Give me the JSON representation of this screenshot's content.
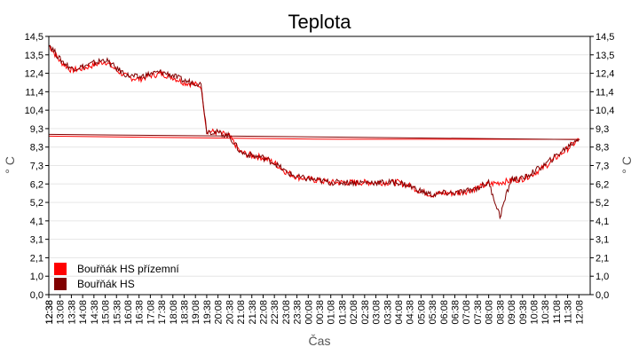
{
  "chart_data": {
    "type": "line",
    "title": "Teplota",
    "xlabel": "Čas",
    "ylabel": "° C",
    "ylim": [
      0,
      14.5
    ],
    "y_ticks": [
      "0,0",
      "1,0",
      "2,1",
      "3,1",
      "4,1",
      "5,2",
      "6,2",
      "7,3",
      "8,3",
      "9,3",
      "10,4",
      "11,4",
      "12,4",
      "13,5",
      "14,5"
    ],
    "x_ticks": [
      "12:38",
      "13:08",
      "13:38",
      "14:08",
      "14:38",
      "15:08",
      "15:38",
      "16:08",
      "16:38",
      "17:08",
      "17:38",
      "18:08",
      "18:38",
      "19:08",
      "19:38",
      "20:08",
      "20:38",
      "21:08",
      "21:38",
      "22:08",
      "22:38",
      "23:08",
      "23:38",
      "00:08",
      "00:38",
      "01:08",
      "01:38",
      "02:08",
      "02:38",
      "03:08",
      "03:38",
      "04:08",
      "04:38",
      "05:08",
      "05:38",
      "06:08",
      "06:38",
      "07:08",
      "07:38",
      "08:08",
      "08:38",
      "09:08",
      "09:38",
      "10:08",
      "10:38",
      "11:08",
      "11:38",
      "12:08",
      "12:38"
    ],
    "grid": true,
    "legend_position": "bottom-left",
    "series": [
      {
        "name": "Bouřňák HS přízemní",
        "color": "#ff0000",
        "x": [
          "12:38",
          "13:08",
          "13:38",
          "14:08",
          "14:38",
          "15:08",
          "15:38",
          "16:08",
          "16:38",
          "17:08",
          "17:38",
          "18:08",
          "18:38",
          "19:08",
          "19:23",
          "19:38",
          "20:08",
          "20:38",
          "21:08",
          "21:38",
          "22:08",
          "22:38",
          "23:08",
          "23:38",
          "00:08",
          "00:38",
          "01:08",
          "01:38",
          "02:08",
          "02:38",
          "03:08",
          "03:38",
          "04:08",
          "04:38",
          "05:08",
          "05:38",
          "06:08",
          "06:38",
          "07:08",
          "07:38",
          "08:08",
          "08:38",
          "09:08",
          "09:38",
          "10:08",
          "10:38",
          "11:08",
          "11:38",
          "12:08",
          "12:38"
        ],
        "values": [
          14.0,
          13.1,
          12.6,
          12.7,
          12.9,
          13.1,
          12.6,
          12.2,
          12.1,
          12.3,
          12.4,
          12.2,
          11.9,
          11.8,
          11.7,
          9.2,
          9.1,
          8.9,
          8.0,
          7.8,
          7.7,
          7.4,
          6.9,
          6.6,
          6.5,
          6.4,
          6.3,
          6.3,
          6.3,
          6.3,
          6.3,
          6.3,
          6.3,
          6.1,
          5.8,
          5.6,
          5.7,
          5.7,
          5.8,
          6.0,
          6.2,
          6.3,
          6.4,
          6.5,
          6.8,
          7.2,
          7.7,
          8.2,
          8.7,
          8.9
        ]
      },
      {
        "name": "Bouřňák HS",
        "color": "#800000",
        "x": [
          "12:38",
          "13:08",
          "13:38",
          "14:08",
          "14:38",
          "15:08",
          "15:38",
          "16:08",
          "16:38",
          "17:08",
          "17:38",
          "18:08",
          "18:38",
          "19:08",
          "19:23",
          "19:38",
          "20:08",
          "20:38",
          "21:08",
          "21:38",
          "22:08",
          "22:38",
          "23:08",
          "23:38",
          "00:08",
          "00:38",
          "01:08",
          "01:38",
          "02:08",
          "02:38",
          "03:08",
          "03:38",
          "04:08",
          "04:38",
          "05:08",
          "05:38",
          "06:08",
          "06:38",
          "07:08",
          "07:38",
          "08:08",
          "08:38",
          "09:08",
          "09:38",
          "10:08",
          "10:38",
          "11:08",
          "11:38",
          "12:08",
          "12:38"
        ],
        "values": [
          14.1,
          13.2,
          12.7,
          12.8,
          13.0,
          13.2,
          12.7,
          12.3,
          12.2,
          12.4,
          12.5,
          12.3,
          12.0,
          11.9,
          11.8,
          9.2,
          9.1,
          8.9,
          8.0,
          7.8,
          7.7,
          7.4,
          6.9,
          6.6,
          6.5,
          6.4,
          6.3,
          6.3,
          6.3,
          6.3,
          6.3,
          6.3,
          6.3,
          6.1,
          5.8,
          5.6,
          5.7,
          5.7,
          5.8,
          6.0,
          6.3,
          4.4,
          6.5,
          6.5,
          6.9,
          7.3,
          7.8,
          8.3,
          8.8,
          9.0
        ]
      }
    ]
  }
}
